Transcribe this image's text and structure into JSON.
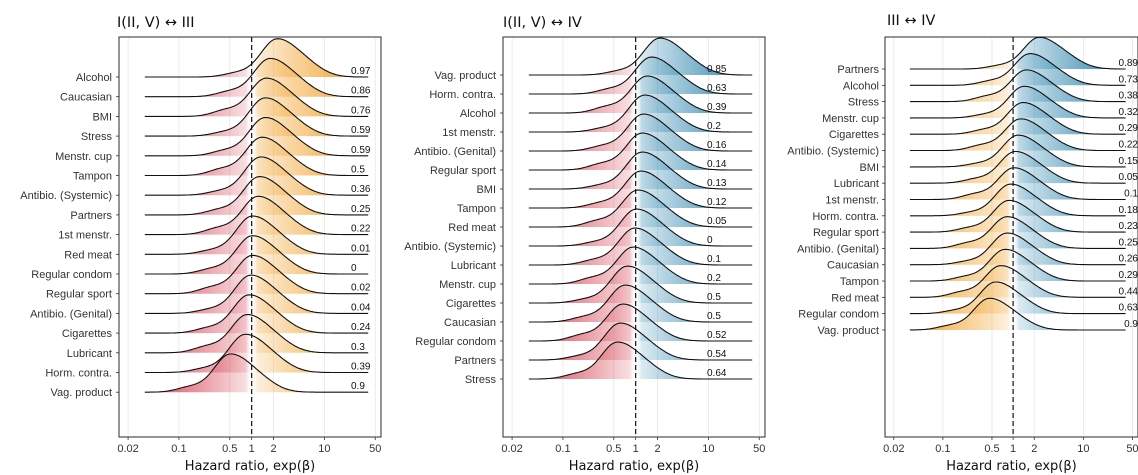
{
  "chart_data": [
    {
      "type": "ridgeline",
      "title": "I(II, V) ↔ III",
      "xlabel": "Hazard ratio, exp(β)",
      "x_scale": "log",
      "xlim": [
        0.015,
        60
      ],
      "x_ticks": [
        "0.02",
        "0.1",
        "0.5",
        "1",
        "2",
        "10",
        "50"
      ],
      "reference_line": 1,
      "positive_color": "#f2a93b",
      "negative_color": "#d9505e",
      "value_column_anchor": "left",
      "rows": [
        {
          "label": "Alcohol",
          "value": "0.97",
          "mode": 2.2
        },
        {
          "label": "Caucasian",
          "value": "0.86",
          "mode": 1.75
        },
        {
          "label": "BMI",
          "value": "0.76",
          "mode": 1.55
        },
        {
          "label": "Stress",
          "value": "0.59",
          "mode": 1.5
        },
        {
          "label": "Menstr. cup",
          "value": "0.59",
          "mode": 1.5
        },
        {
          "label": "Tampon",
          "value": "0.5",
          "mode": 1.35
        },
        {
          "label": "Antibio. (Systemic)",
          "value": "0.36",
          "mode": 1.3
        },
        {
          "label": "Partners",
          "value": "0.25",
          "mode": 1.25
        },
        {
          "label": "1st menstr.",
          "value": "0.22",
          "mode": 1.2
        },
        {
          "label": "Red meat",
          "value": "0.01",
          "mode": 1.0
        },
        {
          "label": "Regular condom",
          "value": "0",
          "mode": 1.0
        },
        {
          "label": "Regular sport",
          "value": "0.02",
          "mode": 1.0
        },
        {
          "label": "Antibio. (Genital)",
          "value": "0.04",
          "mode": 0.95
        },
        {
          "label": "Cigarettes",
          "value": "0.24",
          "mode": 0.9
        },
        {
          "label": "Lubricant",
          "value": "0.3",
          "mode": 0.85
        },
        {
          "label": "Horm. contra.",
          "value": "0.39",
          "mode": 0.8
        },
        {
          "label": "Vag. product",
          "value": "0.9",
          "mode": 0.5
        }
      ]
    },
    {
      "type": "ridgeline",
      "title": "I(II, V) ↔ IV",
      "xlabel": "Hazard ratio, exp(β)",
      "x_scale": "log",
      "xlim": [
        0.015,
        60
      ],
      "x_ticks": [
        "0.02",
        "0.1",
        "0.5",
        "1",
        "2",
        "10",
        "50"
      ],
      "reference_line": 1,
      "positive_color": "#3d8fb5",
      "negative_color": "#d9505e",
      "value_column_anchor": "left",
      "rows": [
        {
          "label": "Vag. product",
          "value": "0.85",
          "mode": 2.1
        },
        {
          "label": "Horm. contra.",
          "value": "0.63",
          "mode": 1.6
        },
        {
          "label": "Alcohol",
          "value": "0.39",
          "mode": 1.4
        },
        {
          "label": "1st menstr.",
          "value": "0.2",
          "mode": 1.3
        },
        {
          "label": "Antibio. (Genital)",
          "value": "0.16",
          "mode": 1.25
        },
        {
          "label": "Regular sport",
          "value": "0.14",
          "mode": 1.2
        },
        {
          "label": "BMI",
          "value": "0.13",
          "mode": 1.2
        },
        {
          "label": "Tampon",
          "value": "0.12",
          "mode": 1.15
        },
        {
          "label": "Red meat",
          "value": "0.05",
          "mode": 1.05
        },
        {
          "label": "Antibio. (Systemic)",
          "value": "0",
          "mode": 1.0
        },
        {
          "label": "Lubricant",
          "value": "0.1",
          "mode": 0.95
        },
        {
          "label": "Menstr. cup",
          "value": "0.2",
          "mode": 0.9
        },
        {
          "label": "Cigarettes",
          "value": "0.5",
          "mode": 0.75
        },
        {
          "label": "Caucasian",
          "value": "0.5",
          "mode": 0.7
        },
        {
          "label": "Regular condom",
          "value": "0.52",
          "mode": 0.65
        },
        {
          "label": "Partners",
          "value": "0.54",
          "mode": 0.6
        },
        {
          "label": "Stress",
          "value": "0.64",
          "mode": 0.55
        }
      ]
    },
    {
      "type": "ridgeline",
      "title": "III ↔ IV",
      "xlabel": "Hazard ratio, exp(β)",
      "x_scale": "log",
      "xlim": [
        0.015,
        60
      ],
      "x_ticks": [
        "0.02",
        "0.1",
        "0.5",
        "1",
        "2",
        "10",
        "50"
      ],
      "reference_line": 1,
      "positive_color": "#3d8fb5",
      "negative_color": "#f2a93b",
      "value_column_anchor": "right",
      "rows": [
        {
          "label": "Partners",
          "value": "0.89",
          "mode": 2.3
        },
        {
          "label": "Alcohol",
          "value": "0.73",
          "mode": 1.7
        },
        {
          "label": "Stress",
          "value": "0.38",
          "mode": 1.5
        },
        {
          "label": "Menstr. cup",
          "value": "0.32",
          "mode": 1.4
        },
        {
          "label": "Cigarettes",
          "value": "0.29",
          "mode": 1.35
        },
        {
          "label": "Antibio. (Systemic)",
          "value": "0.22",
          "mode": 1.25
        },
        {
          "label": "BMI",
          "value": "0.15",
          "mode": 1.15
        },
        {
          "label": "Lubricant",
          "value": "0.05",
          "mode": 1.05
        },
        {
          "label": "1st menstr.",
          "value": "0.1",
          "mode": 1.0
        },
        {
          "label": "Horm. contra.",
          "value": "0.18",
          "mode": 0.9
        },
        {
          "label": "Regular sport",
          "value": "0.23",
          "mode": 0.85
        },
        {
          "label": "Antibio. (Genital)",
          "value": "0.25",
          "mode": 0.8
        },
        {
          "label": "Caucasian",
          "value": "0.26",
          "mode": 0.8
        },
        {
          "label": "Tampon",
          "value": "0.29",
          "mode": 0.75
        },
        {
          "label": "Red meat",
          "value": "0.44",
          "mode": 0.65
        },
        {
          "label": "Regular condom",
          "value": "0.63",
          "mode": 0.55
        },
        {
          "label": "Vag. product",
          "value": "0.9",
          "mode": 0.45
        }
      ]
    }
  ]
}
